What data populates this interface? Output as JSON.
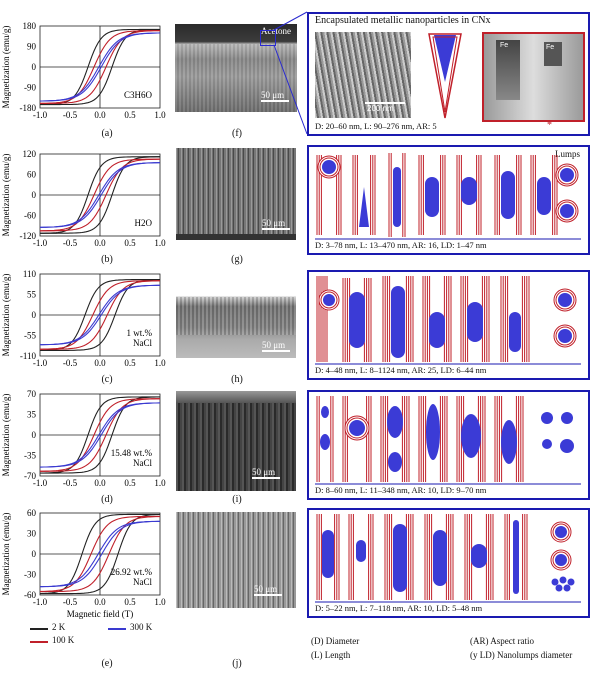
{
  "chart_data": [
    {
      "type": "line",
      "panel": "a",
      "ylim": [
        -180,
        180
      ],
      "yticks": [
        180,
        90,
        0,
        -90,
        -180
      ],
      "xlim": [
        -1,
        1
      ],
      "xticks": [
        "-1.0",
        "-0.5",
        "0.0",
        "0.5",
        "1.0"
      ],
      "ylabel": "Magnetization (emu/g)",
      "annotation": "C3H6O",
      "sat": [
        165,
        160,
        150
      ],
      "coerc": [
        0.2,
        0.1,
        0.02
      ]
    },
    {
      "type": "line",
      "panel": "b",
      "ylim": [
        -120,
        120
      ],
      "yticks": [
        120,
        60,
        0,
        -60,
        -120
      ],
      "xlim": [
        -1,
        1
      ],
      "xticks": [
        "-1.0",
        "-0.5",
        "0.0",
        "0.5",
        "1.0"
      ],
      "ylabel": "Magnetization (emu/g)",
      "annotation": "H2O",
      "sat": [
        112,
        105,
        95
      ],
      "coerc": [
        0.2,
        0.1,
        0.02
      ]
    },
    {
      "type": "line",
      "panel": "c",
      "ylim": [
        -110,
        110
      ],
      "yticks": [
        110,
        55,
        0,
        -55,
        -110
      ],
      "xlim": [
        -1,
        1
      ],
      "xticks": [
        "-1.0",
        "-0.5",
        "0.0",
        "0.5",
        "1.0"
      ],
      "ylabel": "Magnetization (emu/g)",
      "annotation": "1 wt.%\nNaCl",
      "sat": [
        95,
        92,
        80
      ],
      "coerc": [
        0.25,
        0.12,
        0.02
      ]
    },
    {
      "type": "line",
      "panel": "d",
      "ylim": [
        -70,
        70
      ],
      "yticks": [
        70,
        35,
        0,
        -35,
        -70
      ],
      "xlim": [
        -1,
        1
      ],
      "xticks": [
        "-1.0",
        "-0.5",
        "0.0",
        "0.5",
        "1.0"
      ],
      "ylabel": "Magnetization (emu/g)",
      "annotation": "15.48 wt.%\nNaCl",
      "sat": [
        65,
        62,
        55
      ],
      "coerc": [
        0.2,
        0.1,
        0.02
      ]
    },
    {
      "type": "line",
      "panel": "e",
      "ylim": [
        -60,
        60
      ],
      "yticks": [
        60,
        30,
        0,
        -30,
        -60
      ],
      "xlim": [
        -1,
        1
      ],
      "xticks": [
        "-1.0",
        "-0.5",
        "0.0",
        "0.5",
        "1.0"
      ],
      "ylabel": "Magnetization (emu/g)",
      "xlabel": "Magnetic field (T)",
      "annotation": "26.92 wt.%\nNaCl",
      "sat": [
        58,
        55,
        48
      ],
      "coerc": [
        0.3,
        0.15,
        0.03
      ]
    }
  ],
  "series_colors": {
    "2 K": "#222222",
    "100 K": "#c0202a",
    "300 K": "#3a3ad0"
  },
  "legend": [
    {
      "label": "2 K",
      "color": "#222222"
    },
    {
      "label": "100 K",
      "color": "#c0202a"
    },
    {
      "label": "300 K",
      "color": "#3a3ad0"
    }
  ],
  "captions": {
    "a": "(a)",
    "b": "(b)",
    "c": "(c)",
    "d": "(d)",
    "e": "(e)",
    "f": "(f)",
    "g": "(g)",
    "h": "(h)",
    "i": "(i)",
    "j": "(j)"
  },
  "sem": {
    "acetone": "Acetone",
    "scale": "50 μm"
  },
  "box1": {
    "title": "Encapsulated metallic nanoparticles in CNx",
    "scale200": "200 nm",
    "fe1": "Fe",
    "fe2": "Fe",
    "star": "*",
    "dims": "D: 20–60 nm, L: 90–276 nm, AR: 5"
  },
  "box2": {
    "lumps": "Lumps",
    "dims": "D: 3–78 nm, L: 13–470 nm, AR: 16, LD: 1–47 nm"
  },
  "box3": {
    "dims": "D: 4–48 nm, L: 8–1124 nm, AR: 25, LD: 6–44 nm"
  },
  "box4": {
    "dims": "D: 8–60 nm, L: 11–348 nm, AR: 10, LD: 9–70 nm"
  },
  "box5": {
    "dims": "D: 5–22 nm, L: 7–118 nm, AR: 10, LD: 5–48 nm"
  },
  "glossary": {
    "d": "(D) Diameter",
    "l": "(L) Length",
    "ar": "(AR) Aspect ratio",
    "ld": "(y LD) Nanolumps diameter"
  }
}
